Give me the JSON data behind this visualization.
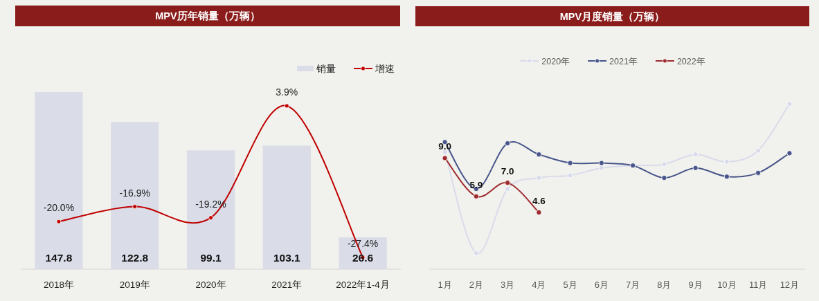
{
  "chart_data": [
    {
      "type": "bar",
      "title": "MPV历年销量（万辆）",
      "categories": [
        "2018年",
        "2019年",
        "2020年",
        "2021年",
        "2022年1-4月"
      ],
      "series": [
        {
          "name": "销量",
          "color": "#dadce7",
          "values": [
            147.8,
            122.8,
            99.1,
            103.1,
            26.6
          ],
          "value_labels": [
            "147.8",
            "122.8",
            "99.1",
            "103.1",
            "26.6"
          ]
        },
        {
          "name": "增速",
          "type": "line",
          "axis": "y2",
          "color": "#c00000",
          "values": [
            -20.0,
            -16.9,
            -19.2,
            3.9,
            -27.4
          ],
          "value_labels": [
            "-20.0%",
            "-16.9%",
            "-19.2%",
            "3.9%",
            "-27.4%"
          ]
        }
      ],
      "tick_labels": "x",
      "legend": "top right",
      "marker": "circle"
    },
    {
      "type": "line",
      "title": "MPV月度销量（万辆）",
      "categories": [
        "1月",
        "2月",
        "3月",
        "4月",
        "5月",
        "6月",
        "7月",
        "8月",
        "9月",
        "10月",
        "11月",
        "12月"
      ],
      "series": [
        {
          "name": "2020年",
          "color": "#d9dbea",
          "values": [
            9.5,
            1.3,
            6.5,
            7.4,
            7.6,
            8.2,
            8.4,
            8.5,
            9.3,
            8.7,
            9.6,
            13.4
          ]
        },
        {
          "name": "2021年",
          "color": "#48558a",
          "values": [
            10.3,
            6.5,
            10.2,
            9.3,
            8.6,
            8.6,
            8.4,
            7.4,
            8.2,
            7.5,
            7.8,
            9.4
          ]
        },
        {
          "name": "2022年",
          "color": "#9e2a2f",
          "values": [
            9.0,
            5.9,
            7.0,
            4.6,
            null,
            null,
            null,
            null,
            null,
            null,
            null,
            null
          ],
          "value_labels": [
            "9.0",
            "5.9",
            "7.0",
            "4.6",
            null,
            null,
            null,
            null,
            null,
            null,
            null,
            null
          ]
        }
      ],
      "tick_labels": "x",
      "legend": "top",
      "marker": "circle"
    }
  ]
}
